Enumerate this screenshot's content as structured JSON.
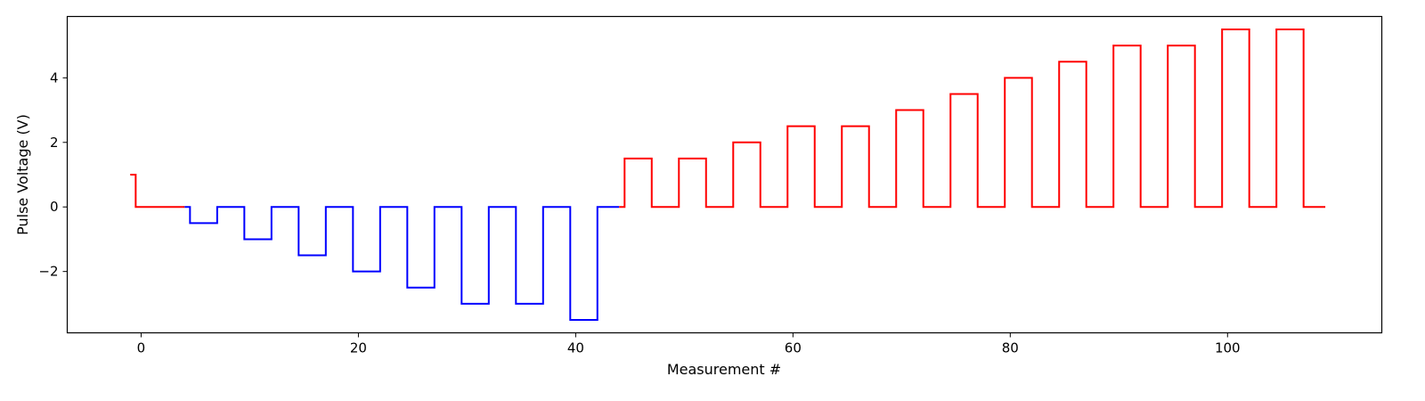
{
  "chart_data": {
    "type": "line",
    "title": "",
    "xlabel": "Measurement #",
    "ylabel": "Pulse Voltage (V)",
    "xlim": [
      -6.8,
      114.2
    ],
    "ylim": [
      -3.9,
      5.9
    ],
    "x_ticks": [
      0,
      20,
      40,
      60,
      80,
      100
    ],
    "x_tick_labels": [
      "0",
      "20",
      "40",
      "60",
      "80",
      "100"
    ],
    "y_ticks": [
      -2,
      0,
      2,
      4
    ],
    "y_tick_labels": [
      "−2",
      "0",
      "2",
      "4"
    ],
    "grid": false,
    "legend": "none",
    "segments": [
      {
        "color": "#ff0000",
        "x": [
          -1,
          0,
          4
        ],
        "y": [
          1,
          0,
          0
        ],
        "drawstyle": "steps-mid"
      },
      {
        "color": "#0000ff",
        "x": [
          4,
          5,
          9,
          10,
          14,
          15,
          19,
          20,
          24,
          25,
          29,
          30,
          34,
          35,
          39,
          40,
          44
        ],
        "y": [
          0,
          -0.5,
          0,
          -1,
          0,
          -1.5,
          0,
          -2,
          0,
          -2.5,
          0,
          -3,
          0,
          -3,
          0,
          -3.5,
          0
        ],
        "drawstyle": "steps-mid"
      },
      {
        "color": "#ff0000",
        "x": [
          44,
          45,
          49,
          50,
          54,
          55,
          59,
          60,
          64,
          65,
          69,
          70,
          74,
          75,
          79,
          80,
          84,
          85,
          89,
          90,
          94,
          95,
          99,
          100,
          104,
          105,
          109
        ],
        "y": [
          0,
          1.5,
          0,
          1.5,
          0,
          2,
          0,
          2.5,
          0,
          2.5,
          0,
          3,
          0,
          3.5,
          0,
          4,
          0,
          4.5,
          0,
          5,
          0,
          5,
          0,
          5.5,
          0,
          5.5,
          0
        ],
        "drawstyle": "steps-mid"
      }
    ]
  }
}
